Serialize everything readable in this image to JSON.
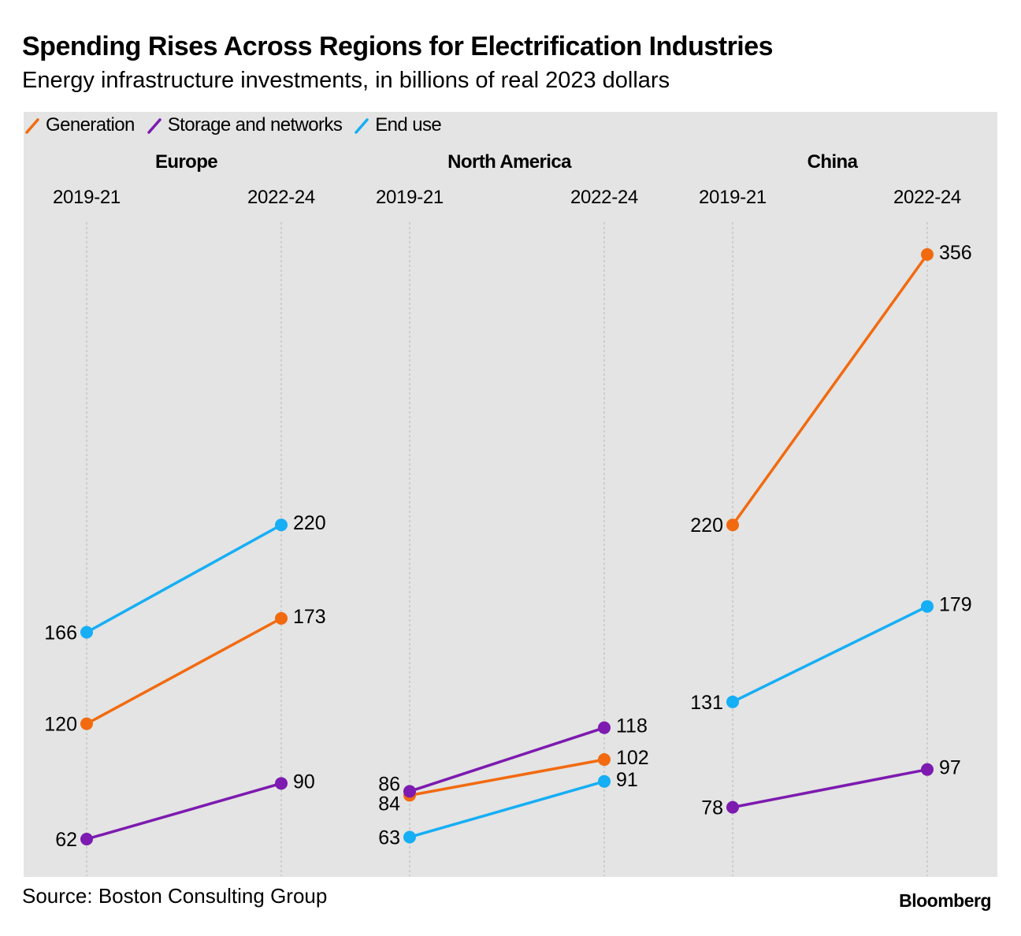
{
  "title": "Spending Rises Across Regions for Electrification Industries",
  "subtitle": "Energy infrastructure investments, in billions of real 2023 dollars",
  "source": "Source: Boston Consulting Group",
  "brand": "Bloomberg",
  "colors": {
    "generation": "#f26a10",
    "storage": "#7d1ab0",
    "end_use": "#16aef5",
    "background": "#e3e4e3",
    "gridline": "#c4c5c4"
  },
  "legend": [
    {
      "key": "generation",
      "label": "Generation",
      "color": "#f26a10"
    },
    {
      "key": "storage",
      "label": "Storage and networks",
      "color": "#7d1ab0"
    },
    {
      "key": "end_use",
      "label": "End use",
      "color": "#16aef5"
    }
  ],
  "chart_data": {
    "type": "line",
    "subtype": "slope",
    "title": "Spending Rises Across Regions for Electrification Industries",
    "ylabel": "Billions of real 2023 dollars",
    "ylim": [
      50,
      360
    ],
    "categories": [
      "2019-21",
      "2022-24"
    ],
    "panels": [
      {
        "region": "Europe",
        "series": [
          {
            "key": "generation",
            "name": "Generation",
            "values": [
              120,
              173
            ]
          },
          {
            "key": "storage",
            "name": "Storage and networks",
            "values": [
              62,
              90
            ]
          },
          {
            "key": "end_use",
            "name": "End use",
            "values": [
              166,
              220
            ]
          }
        ]
      },
      {
        "region": "North America",
        "series": [
          {
            "key": "generation",
            "name": "Generation",
            "values": [
              84,
              102
            ]
          },
          {
            "key": "storage",
            "name": "Storage and networks",
            "values": [
              86,
              118
            ]
          },
          {
            "key": "end_use",
            "name": "End use",
            "values": [
              63,
              91
            ]
          }
        ]
      },
      {
        "region": "China",
        "series": [
          {
            "key": "generation",
            "name": "Generation",
            "values": [
              220,
              356
            ]
          },
          {
            "key": "storage",
            "name": "Storage and networks",
            "values": [
              78,
              97
            ]
          },
          {
            "key": "end_use",
            "name": "End use",
            "values": [
              131,
              179
            ]
          }
        ]
      }
    ]
  }
}
